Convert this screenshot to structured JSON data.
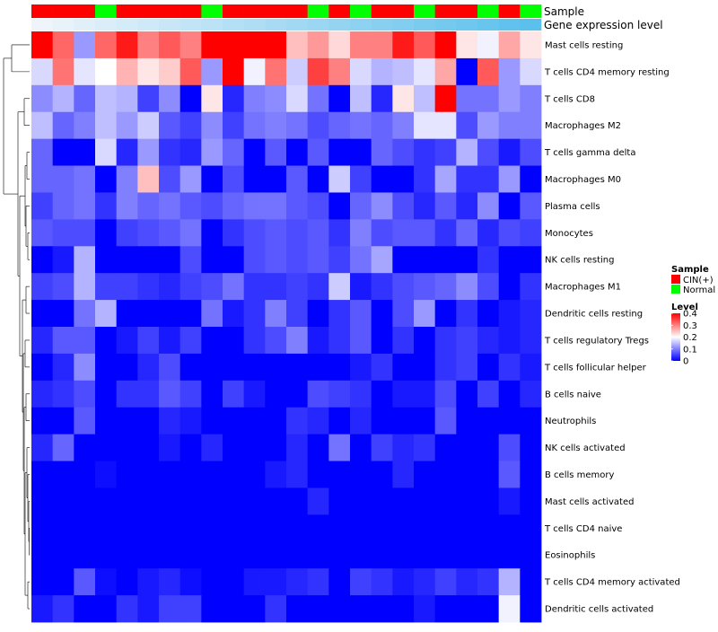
{
  "chart_data": {
    "type": "heatmap",
    "title": "",
    "annotation_tracks": [
      "Sample",
      "Gene expression level"
    ],
    "sample_groups": [
      "CIN(+)",
      "CIN(+)",
      "CIN(+)",
      "Normal",
      "CIN(+)",
      "CIN(+)",
      "CIN(+)",
      "CIN(+)",
      "Normal",
      "CIN(+)",
      "CIN(+)",
      "CIN(+)",
      "CIN(+)",
      "Normal",
      "CIN(+)",
      "Normal",
      "CIN(+)",
      "CIN(+)",
      "Normal",
      "CIN(+)",
      "CIN(+)",
      "Normal",
      "CIN(+)",
      "Normal"
    ],
    "rows": [
      "Mast cells resting",
      "T cells CD4 memory resting",
      "T cells CD8",
      "Macrophages M2",
      "T cells gamma delta",
      "Macrophages M0",
      "Plasma cells",
      "Monocytes",
      "NK cells resting",
      "Macrophages M1",
      "Dendritic cells resting",
      "T cells regulatory  Tregs",
      "T cells follicular helper",
      "B cells naive",
      "Neutrophils",
      "NK cells activated",
      "B cells memory",
      "Mast cells activated",
      "T cells CD4 naive",
      "Eosinophils",
      "T cells CD4 memory activated",
      "Dendritic cells activated"
    ],
    "values": [
      [
        0.4,
        0.32,
        0.12,
        0.32,
        0.38,
        0.3,
        0.33,
        0.3,
        0.4,
        0.4,
        0.4,
        0.4,
        0.25,
        0.28,
        0.23,
        0.3,
        0.3,
        0.38,
        0.33,
        0.4,
        0.22,
        0.19,
        0.27,
        0.22
      ],
      [
        0.17,
        0.31,
        0.18,
        0.2,
        0.26,
        0.22,
        0.24,
        0.33,
        0.12,
        0.4,
        0.19,
        0.31,
        0.16,
        0.35,
        0.3,
        0.17,
        0.14,
        0.15,
        0.18,
        0.27,
        0.0,
        0.33,
        0.12,
        0.17
      ],
      [
        0.11,
        0.14,
        0.08,
        0.15,
        0.14,
        0.05,
        0.11,
        0.0,
        0.22,
        0.03,
        0.1,
        0.11,
        0.17,
        0.09,
        0.0,
        0.15,
        0.03,
        0.22,
        0.15,
        0.4,
        0.09,
        0.09,
        0.12,
        0.1
      ],
      [
        0.15,
        0.08,
        0.1,
        0.15,
        0.12,
        0.16,
        0.07,
        0.05,
        0.11,
        0.05,
        0.09,
        0.1,
        0.09,
        0.06,
        0.08,
        0.09,
        0.08,
        0.1,
        0.18,
        0.18,
        0.06,
        0.12,
        0.1,
        0.1
      ],
      [
        0.08,
        0.0,
        0.0,
        0.17,
        0.03,
        0.12,
        0.04,
        0.03,
        0.12,
        0.08,
        0.0,
        0.07,
        0.0,
        0.07,
        0.0,
        0.0,
        0.08,
        0.06,
        0.04,
        0.05,
        0.14,
        0.06,
        0.02,
        0.06
      ],
      [
        0.08,
        0.08,
        0.09,
        0.0,
        0.1,
        0.25,
        0.06,
        0.12,
        0.0,
        0.06,
        0.0,
        0.0,
        0.07,
        0.0,
        0.16,
        0.05,
        0.0,
        0.0,
        0.04,
        0.13,
        0.04,
        0.04,
        0.12,
        0.0
      ],
      [
        0.05,
        0.08,
        0.09,
        0.04,
        0.1,
        0.08,
        0.09,
        0.07,
        0.06,
        0.08,
        0.09,
        0.09,
        0.07,
        0.06,
        0.0,
        0.08,
        0.11,
        0.06,
        0.03,
        0.07,
        0.03,
        0.11,
        0.0,
        0.07
      ],
      [
        0.07,
        0.06,
        0.06,
        0.0,
        0.05,
        0.06,
        0.07,
        0.09,
        0.0,
        0.04,
        0.06,
        0.07,
        0.06,
        0.07,
        0.04,
        0.1,
        0.06,
        0.07,
        0.07,
        0.04,
        0.08,
        0.03,
        0.06,
        0.05
      ],
      [
        0.0,
        0.02,
        0.14,
        0.0,
        0.0,
        0.0,
        0.0,
        0.06,
        0.0,
        0.0,
        0.06,
        0.07,
        0.06,
        0.07,
        0.05,
        0.09,
        0.13,
        0.0,
        0.0,
        0.0,
        0.0,
        0.04,
        0.0,
        0.0
      ],
      [
        0.05,
        0.06,
        0.14,
        0.05,
        0.05,
        0.04,
        0.03,
        0.05,
        0.06,
        0.09,
        0.04,
        0.04,
        0.05,
        0.04,
        0.16,
        0.02,
        0.04,
        0.06,
        0.07,
        0.08,
        0.11,
        0.06,
        0.0,
        0.04
      ],
      [
        0.0,
        0.0,
        0.09,
        0.14,
        0.0,
        0.0,
        0.0,
        0.0,
        0.09,
        0.02,
        0.04,
        0.1,
        0.05,
        0.0,
        0.04,
        0.07,
        0.0,
        0.06,
        0.12,
        0.0,
        0.04,
        0.0,
        0.02,
        0.03
      ],
      [
        0.03,
        0.07,
        0.07,
        0.0,
        0.02,
        0.05,
        0.02,
        0.05,
        0.0,
        0.0,
        0.04,
        0.06,
        0.1,
        0.02,
        0.04,
        0.07,
        0.0,
        0.04,
        0.0,
        0.04,
        0.05,
        0.03,
        0.02,
        0.03
      ],
      [
        0.0,
        0.03,
        0.11,
        0.0,
        0.0,
        0.03,
        0.06,
        0.0,
        0.0,
        0.0,
        0.0,
        0.0,
        0.0,
        0.0,
        0.0,
        0.02,
        0.04,
        0.0,
        0.0,
        0.04,
        0.05,
        0.0,
        0.04,
        0.02
      ],
      [
        0.03,
        0.04,
        0.06,
        0.0,
        0.04,
        0.04,
        0.07,
        0.05,
        0.0,
        0.05,
        0.02,
        0.0,
        0.0,
        0.06,
        0.05,
        0.04,
        0.0,
        0.02,
        0.02,
        0.06,
        0.0,
        0.05,
        0.0,
        0.03
      ],
      [
        0.0,
        0.0,
        0.07,
        0.0,
        0.0,
        0.0,
        0.03,
        0.02,
        0.0,
        0.0,
        0.0,
        0.0,
        0.04,
        0.03,
        0.0,
        0.03,
        0.0,
        0.0,
        0.0,
        0.07,
        0.0,
        0.0,
        0.0,
        0.0
      ],
      [
        0.03,
        0.08,
        0.0,
        0.0,
        0.0,
        0.0,
        0.02,
        0.0,
        0.03,
        0.0,
        0.0,
        0.0,
        0.03,
        0.0,
        0.09,
        0.0,
        0.05,
        0.03,
        0.04,
        0.0,
        0.0,
        0.0,
        0.06,
        0.0
      ],
      [
        0.0,
        0.0,
        0.0,
        0.01,
        0.0,
        0.0,
        0.0,
        0.0,
        0.0,
        0.0,
        0.0,
        0.02,
        0.03,
        0.0,
        0.0,
        0.0,
        0.0,
        0.03,
        0.0,
        0.0,
        0.0,
        0.0,
        0.07,
        0.0
      ],
      [
        0.0,
        0.0,
        0.0,
        0.0,
        0.0,
        0.0,
        0.0,
        0.0,
        0.0,
        0.0,
        0.0,
        0.0,
        0.0,
        0.03,
        0.0,
        0.0,
        0.0,
        0.0,
        0.0,
        0.0,
        0.0,
        0.0,
        0.02,
        0.0
      ],
      [
        0.0,
        0.0,
        0.0,
        0.0,
        0.0,
        0.0,
        0.0,
        0.0,
        0.0,
        0.0,
        0.0,
        0.0,
        0.0,
        0.0,
        0.0,
        0.0,
        0.0,
        0.0,
        0.0,
        0.0,
        0.0,
        0.0,
        0.0,
        0.0
      ],
      [
        0.0,
        0.0,
        0.0,
        0.0,
        0.0,
        0.0,
        0.0,
        0.0,
        0.0,
        0.0,
        0.0,
        0.0,
        0.0,
        0.0,
        0.0,
        0.0,
        0.0,
        0.0,
        0.0,
        0.0,
        0.0,
        0.0,
        0.0,
        0.0
      ],
      [
        0.0,
        0.0,
        0.07,
        0.01,
        0.0,
        0.02,
        0.03,
        0.01,
        0.0,
        0.0,
        0.02,
        0.02,
        0.03,
        0.04,
        0.0,
        0.05,
        0.04,
        0.02,
        0.03,
        0.05,
        0.03,
        0.04,
        0.14,
        0.0
      ],
      [
        0.02,
        0.04,
        0.0,
        0.0,
        0.04,
        0.02,
        0.05,
        0.05,
        0.0,
        0.0,
        0.0,
        0.04,
        0.0,
        0.0,
        0.0,
        0.0,
        0.0,
        0.0,
        0.02,
        0.0,
        0.0,
        0.0,
        0.19,
        0.0
      ]
    ],
    "color_scale": {
      "min": 0,
      "max": 0.4,
      "low": "#0000FF",
      "mid": "#FFFFFF",
      "high": "#FF0000"
    },
    "legend": {
      "sample_title": "Sample",
      "sample_entries": [
        {
          "label": "CIN(+)",
          "color": "#FF0000"
        },
        {
          "label": "Normal",
          "color": "#00FF00"
        }
      ],
      "level_title": "Level",
      "level_ticks": [
        "0.4",
        "0.3",
        "0.2",
        "0.1",
        "0"
      ]
    },
    "expression_track_color_start": "#EEF4FA",
    "expression_track_color_end": "#5BC0EC",
    "legend_placement": "right"
  }
}
